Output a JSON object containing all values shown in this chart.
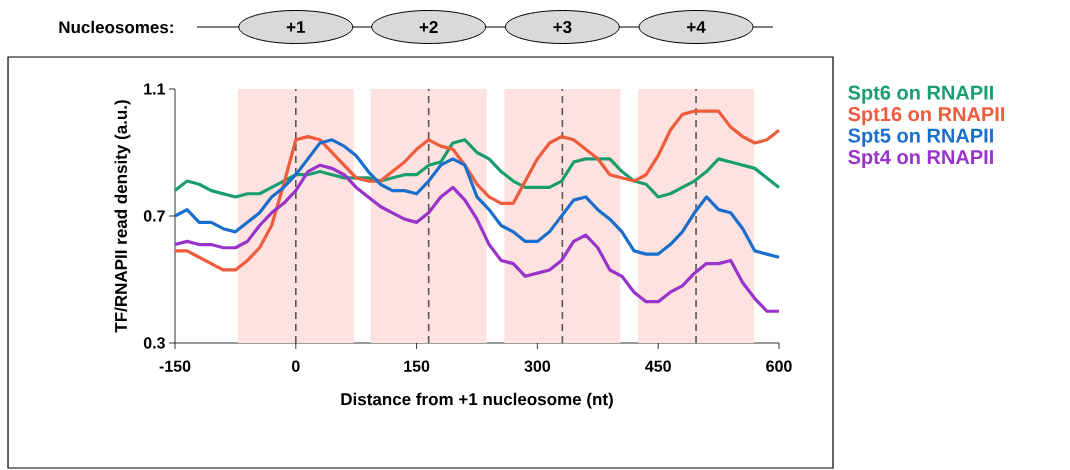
{
  "chart_data": {
    "type": "line",
    "xlabel": "Distance from +1 nucleosome (nt)",
    "ylabel": "TF/RNAPII read density (a.u.)",
    "annotations": [
      "Nucleosomes:",
      "+1",
      "+2",
      "+3",
      "+4"
    ],
    "x": [
      -150,
      -135,
      -120,
      -105,
      -90,
      -75,
      -60,
      -45,
      -30,
      -15,
      0,
      15,
      30,
      45,
      60,
      75,
      90,
      105,
      120,
      135,
      150,
      165,
      180,
      195,
      210,
      225,
      240,
      255,
      270,
      285,
      300,
      315,
      330,
      345,
      360,
      375,
      390,
      405,
      420,
      435,
      450,
      465,
      480,
      495,
      510,
      525,
      540,
      555,
      570,
      585,
      600
    ],
    "series": [
      {
        "name": "Spt6 on RNAPII",
        "color": "#1b9e6e",
        "values": [
          0.78,
          0.81,
          0.8,
          0.78,
          0.77,
          0.76,
          0.77,
          0.77,
          0.79,
          0.81,
          0.83,
          0.83,
          0.84,
          0.83,
          0.82,
          0.82,
          0.82,
          0.81,
          0.82,
          0.83,
          0.83,
          0.86,
          0.87,
          0.93,
          0.94,
          0.9,
          0.88,
          0.84,
          0.81,
          0.79,
          0.79,
          0.79,
          0.81,
          0.87,
          0.88,
          0.88,
          0.88,
          0.84,
          0.81,
          0.8,
          0.76,
          0.77,
          0.79,
          0.81,
          0.84,
          0.88,
          0.87,
          0.86,
          0.85,
          0.82,
          0.79
        ]
      },
      {
        "name": "Spt16 on RNAPII",
        "color": "#ef5b3d",
        "values": [
          0.59,
          0.59,
          0.57,
          0.55,
          0.53,
          0.53,
          0.56,
          0.6,
          0.67,
          0.8,
          0.94,
          0.95,
          0.94,
          0.9,
          0.86,
          0.82,
          0.81,
          0.81,
          0.84,
          0.87,
          0.91,
          0.94,
          0.92,
          0.91,
          0.86,
          0.8,
          0.76,
          0.74,
          0.74,
          0.81,
          0.88,
          0.93,
          0.95,
          0.94,
          0.91,
          0.88,
          0.83,
          0.82,
          0.81,
          0.83,
          0.89,
          0.97,
          1.02,
          1.03,
          1.03,
          1.03,
          0.98,
          0.95,
          0.93,
          0.94,
          0.97
        ]
      },
      {
        "name": "Spt5 on RNAPII",
        "color": "#1a6fcc",
        "values": [
          0.7,
          0.72,
          0.68,
          0.68,
          0.66,
          0.65,
          0.68,
          0.71,
          0.76,
          0.79,
          0.83,
          0.88,
          0.93,
          0.94,
          0.92,
          0.89,
          0.84,
          0.8,
          0.78,
          0.78,
          0.77,
          0.81,
          0.86,
          0.88,
          0.86,
          0.76,
          0.72,
          0.67,
          0.65,
          0.62,
          0.62,
          0.65,
          0.7,
          0.75,
          0.76,
          0.72,
          0.69,
          0.65,
          0.59,
          0.58,
          0.58,
          0.61,
          0.65,
          0.71,
          0.76,
          0.72,
          0.71,
          0.66,
          0.59,
          0.58,
          0.57
        ]
      },
      {
        "name": "Spt4 on RNAPII",
        "color": "#9933cc",
        "values": [
          0.61,
          0.62,
          0.61,
          0.61,
          0.6,
          0.6,
          0.62,
          0.67,
          0.71,
          0.74,
          0.78,
          0.84,
          0.86,
          0.85,
          0.83,
          0.79,
          0.76,
          0.73,
          0.71,
          0.69,
          0.68,
          0.71,
          0.76,
          0.79,
          0.75,
          0.69,
          0.61,
          0.56,
          0.55,
          0.51,
          0.52,
          0.53,
          0.56,
          0.62,
          0.64,
          0.6,
          0.53,
          0.51,
          0.46,
          0.43,
          0.43,
          0.46,
          0.48,
          0.52,
          0.55,
          0.55,
          0.56,
          0.49,
          0.44,
          0.4,
          0.4
        ]
      }
    ],
    "xlim": [
      -150,
      600
    ],
    "ylim": [
      0.3,
      1.1
    ],
    "xticks": [
      -150,
      0,
      150,
      300,
      450,
      600
    ],
    "yticks": [
      0.3,
      0.7,
      1.1
    ],
    "ref_lines": [
      {
        "axis": "x",
        "value": 0,
        "color": "#555555",
        "line_style": "dashed"
      },
      {
        "axis": "x",
        "value": 165,
        "color": "#555555",
        "line_style": "dashed"
      },
      {
        "axis": "x",
        "value": 331,
        "color": "#555555",
        "line_style": "dashed"
      },
      {
        "axis": "x",
        "value": 497,
        "color": "#555555",
        "line_style": "dashed"
      }
    ],
    "bands": [
      {
        "axis": "x",
        "from": -72,
        "to": 72,
        "color": "#fde2df"
      },
      {
        "axis": "x",
        "from": 93,
        "to": 237,
        "color": "#fde2df"
      },
      {
        "axis": "x",
        "from": 259,
        "to": 403,
        "color": "#fde2df"
      },
      {
        "axis": "x",
        "from": 425,
        "to": 569,
        "color": "#fde2df"
      }
    ],
    "grid": false,
    "legend": "top right",
    "marker": "none",
    "line_style": "solid"
  }
}
